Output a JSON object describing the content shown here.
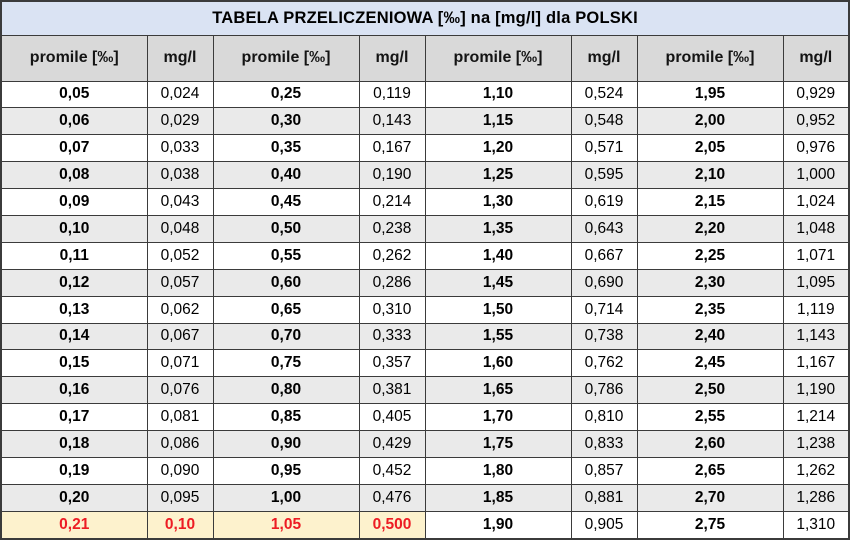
{
  "title": "TABELA PRZELICZENIOWA [‰] na [mg/l] dla POLSKI",
  "header": {
    "columns": [
      "promile [‰]",
      "mg/l",
      "promile [‰]",
      "mg/l",
      "promile [‰]",
      "mg/l",
      "promile [‰]",
      "mg/l"
    ]
  },
  "rows": [
    [
      "0,05",
      "0,024",
      "0,25",
      "0,119",
      "1,10",
      "0,524",
      "1,95",
      "0,929"
    ],
    [
      "0,06",
      "0,029",
      "0,30",
      "0,143",
      "1,15",
      "0,548",
      "2,00",
      "0,952"
    ],
    [
      "0,07",
      "0,033",
      "0,35",
      "0,167",
      "1,20",
      "0,571",
      "2,05",
      "0,976"
    ],
    [
      "0,08",
      "0,038",
      "0,40",
      "0,190",
      "1,25",
      "0,595",
      "2,10",
      "1,000"
    ],
    [
      "0,09",
      "0,043",
      "0,45",
      "0,214",
      "1,30",
      "0,619",
      "2,15",
      "1,024"
    ],
    [
      "0,10",
      "0,048",
      "0,50",
      "0,238",
      "1,35",
      "0,643",
      "2,20",
      "1,048"
    ],
    [
      "0,11",
      "0,052",
      "0,55",
      "0,262",
      "1,40",
      "0,667",
      "2,25",
      "1,071"
    ],
    [
      "0,12",
      "0,057",
      "0,60",
      "0,286",
      "1,45",
      "0,690",
      "2,30",
      "1,095"
    ],
    [
      "0,13",
      "0,062",
      "0,65",
      "0,310",
      "1,50",
      "0,714",
      "2,35",
      "1,119"
    ],
    [
      "0,14",
      "0,067",
      "0,70",
      "0,333",
      "1,55",
      "0,738",
      "2,40",
      "1,143"
    ],
    [
      "0,15",
      "0,071",
      "0,75",
      "0,357",
      "1,60",
      "0,762",
      "2,45",
      "1,167"
    ],
    [
      "0,16",
      "0,076",
      "0,80",
      "0,381",
      "1,65",
      "0,786",
      "2,50",
      "1,190"
    ],
    [
      "0,17",
      "0,081",
      "0,85",
      "0,405",
      "1,70",
      "0,810",
      "2,55",
      "1,214"
    ],
    [
      "0,18",
      "0,086",
      "0,90",
      "0,429",
      "1,75",
      "0,833",
      "2,60",
      "1,238"
    ],
    [
      "0,19",
      "0,090",
      "0,95",
      "0,452",
      "1,80",
      "0,857",
      "2,65",
      "1,262"
    ],
    [
      "0,20",
      "0,095",
      "1,00",
      "0,476",
      "1,85",
      "0,881",
      "2,70",
      "1,286"
    ],
    [
      "0,21",
      "0,10",
      "1,05",
      "0,500",
      "1,90",
      "0,905",
      "2,75",
      "1,310"
    ]
  ],
  "highlight": {
    "row_index": 16,
    "columns": [
      0,
      1,
      2,
      3
    ]
  },
  "colors": {
    "title_bg": "#dae3f3",
    "header_bg": "#d9d9d9",
    "stripe_bg": "#eaeaea",
    "highlight_bg": "#fdf2cd",
    "highlight_text": "#ed1c24",
    "border": "#3b3b3b"
  }
}
